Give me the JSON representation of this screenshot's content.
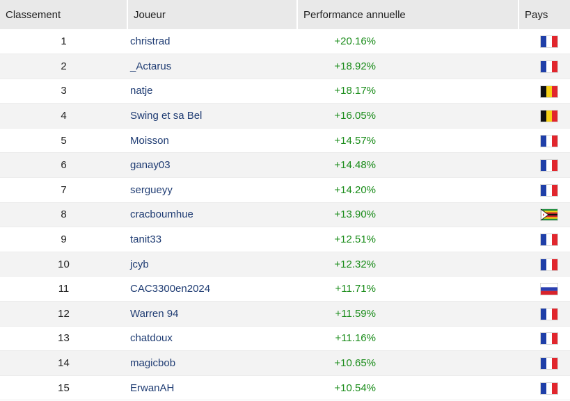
{
  "headers": {
    "rank": "Classement",
    "player": "Joueur",
    "performance": "Performance annuelle",
    "country": "Pays"
  },
  "rows": [
    {
      "rank": "1",
      "player": "christrad",
      "performance": "+20.16%",
      "flag": "fr"
    },
    {
      "rank": "2",
      "player": "_Actarus",
      "performance": "+18.92%",
      "flag": "fr"
    },
    {
      "rank": "3",
      "player": "natje",
      "performance": "+18.17%",
      "flag": "be"
    },
    {
      "rank": "4",
      "player": "Swing et sa Bel",
      "performance": "+16.05%",
      "flag": "be"
    },
    {
      "rank": "5",
      "player": "Moisson",
      "performance": "+14.57%",
      "flag": "fr"
    },
    {
      "rank": "6",
      "player": "ganay03",
      "performance": "+14.48%",
      "flag": "fr"
    },
    {
      "rank": "7",
      "player": "sergueyy",
      "performance": "+14.20%",
      "flag": "fr"
    },
    {
      "rank": "8",
      "player": "cracboumhue",
      "performance": "+13.90%",
      "flag": "zw"
    },
    {
      "rank": "9",
      "player": "tanit33",
      "performance": "+12.51%",
      "flag": "fr"
    },
    {
      "rank": "10",
      "player": "jcyb",
      "performance": "+12.32%",
      "flag": "fr"
    },
    {
      "rank": "11",
      "player": "CAC3300en2024",
      "performance": "+11.71%",
      "flag": "ru"
    },
    {
      "rank": "12",
      "player": "Warren 94",
      "performance": "+11.59%",
      "flag": "fr"
    },
    {
      "rank": "13",
      "player": "chatdoux",
      "performance": "+11.16%",
      "flag": "fr"
    },
    {
      "rank": "14",
      "player": "magicbob",
      "performance": "+10.65%",
      "flag": "fr"
    },
    {
      "rank": "15",
      "player": "ErwanAH",
      "performance": "+10.54%",
      "flag": "fr"
    }
  ],
  "colors": {
    "player_link": "#1f3c73",
    "performance_positive": "#1a8c1a",
    "header_bg": "#e9e9e9",
    "stripe_bg": "#f3f3f3"
  }
}
